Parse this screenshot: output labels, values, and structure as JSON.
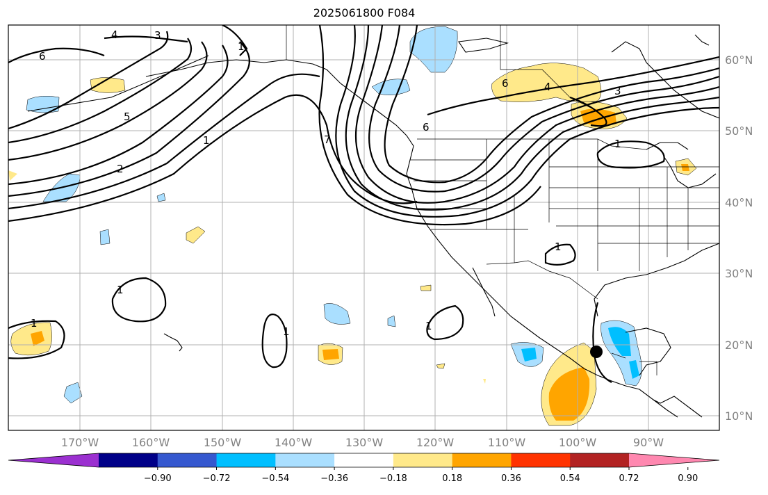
{
  "title": "2025061800 F084",
  "lon_ticks": [
    "170°W",
    "160°W",
    "150°W",
    "140°W",
    "130°W",
    "120°W",
    "110°W",
    "100°W",
    "90°W"
  ],
  "lat_ticks": [
    "60°N",
    "50°N",
    "40°N",
    "30°N",
    "20°N",
    "10°N"
  ],
  "colorbar": {
    "ticks": [
      "−0.90",
      "−0.72",
      "−0.54",
      "−0.36",
      "−0.18",
      "0.18",
      "0.36",
      "0.54",
      "0.72",
      "0.90"
    ],
    "colors": [
      "#9b30d0",
      "#000088",
      "#3558cf",
      "#00bfff",
      "#aadfff",
      "#ffffff",
      "#ffe98a",
      "#ffa500",
      "#ff3300",
      "#b22222",
      "#ff88b0"
    ]
  },
  "contour_labels": [
    "6",
    "4",
    "3",
    "1",
    "5",
    "2",
    "1",
    "1",
    "1",
    "1",
    "1",
    "7",
    "6",
    "6",
    "4",
    "3",
    "1",
    "1"
  ],
  "marker": {
    "name": "point",
    "lon": -97,
    "lat": 19
  }
}
